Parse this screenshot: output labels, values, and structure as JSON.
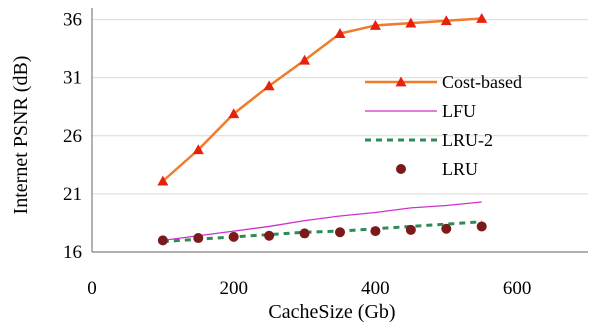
{
  "colors": {
    "cost_based": "#f07b2c",
    "cost_based_marker": "#e8200c",
    "lfu": "#cc33cc",
    "lru2": "#2e8b57",
    "lru": "#7b1a1a",
    "gridline": "#d9d9d9",
    "axis": "#808080"
  },
  "chart_data": {
    "type": "line",
    "xlabel": "CacheSize (Gb)",
    "ylabel": "Internet PSNR (dB)",
    "xlim": [
      0,
      700
    ],
    "ylim": [
      16,
      37
    ],
    "xticks": [
      0,
      200,
      400,
      600
    ],
    "yticks": [
      16,
      21,
      26,
      31,
      36
    ],
    "xtick_labels": [
      "0",
      "200",
      "400",
      "600"
    ],
    "ytick_labels": [
      "16",
      "21",
      "26",
      "31",
      "36"
    ],
    "grid": "horizontal",
    "legend_position": "right",
    "series": [
      {
        "name": "Cost-based",
        "style": "line with triangle markers",
        "x": [
          100,
          150,
          200,
          250,
          300,
          350,
          400,
          450,
          500,
          550
        ],
        "y": [
          22.1,
          24.8,
          27.9,
          30.3,
          32.5,
          34.8,
          35.5,
          35.7,
          35.9,
          36.1
        ]
      },
      {
        "name": "LFU",
        "style": "thin line",
        "x": [
          100,
          150,
          200,
          250,
          300,
          350,
          400,
          450,
          500,
          550
        ],
        "y": [
          17.0,
          17.4,
          17.8,
          18.2,
          18.7,
          19.1,
          19.4,
          19.8,
          20.0,
          20.3
        ]
      },
      {
        "name": "LRU-2",
        "style": "dashed line",
        "x": [
          100,
          150,
          200,
          250,
          300,
          350,
          400,
          450,
          500,
          550
        ],
        "y": [
          16.9,
          17.1,
          17.3,
          17.5,
          17.7,
          17.8,
          18.0,
          18.2,
          18.4,
          18.6
        ]
      },
      {
        "name": "LRU",
        "style": "circle markers only",
        "x": [
          100,
          150,
          200,
          250,
          300,
          350,
          400,
          450,
          500,
          550
        ],
        "y": [
          17.0,
          17.2,
          17.3,
          17.4,
          17.6,
          17.7,
          17.8,
          17.9,
          18.0,
          18.2
        ]
      }
    ]
  }
}
